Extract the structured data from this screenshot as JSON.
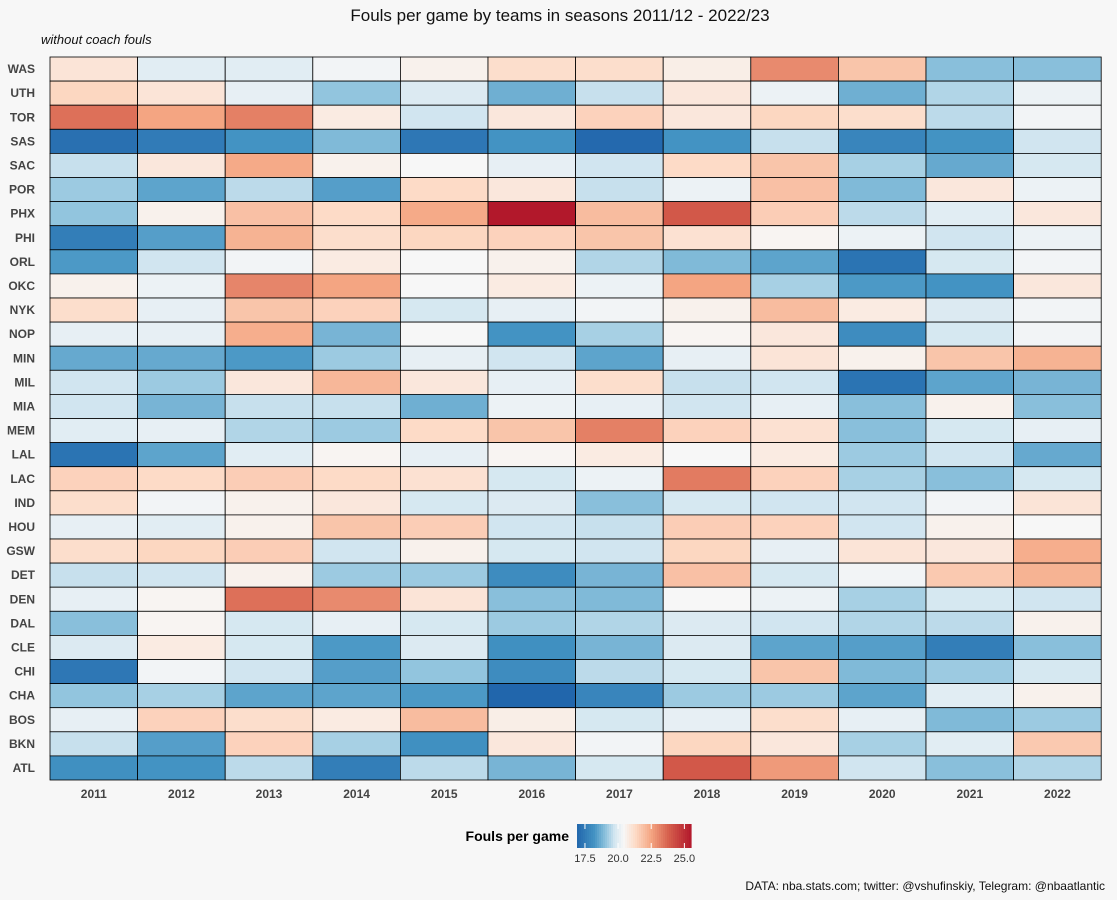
{
  "title": "Fouls per game by teams in seasons 2011/12 - 2022/23",
  "subtitle": "without coach fouls",
  "caption": "DATA: nba.stats.com; twitter: @vshufinskiy, Telegram: @nbaatlantic",
  "chart_data": {
    "type": "heatmap",
    "title": "Fouls per game by teams in seasons 2011/12 - 2022/23",
    "subtitle": "without coach fouls",
    "x_categories": [
      "2011",
      "2012",
      "2013",
      "2014",
      "2015",
      "2016",
      "2017",
      "2018",
      "2019",
      "2020",
      "2021",
      "2022"
    ],
    "y_categories": [
      "WAS",
      "UTH",
      "TOR",
      "SAS",
      "SAC",
      "POR",
      "PHX",
      "PHI",
      "ORL",
      "OKC",
      "NYK",
      "NOP",
      "MIN",
      "MIL",
      "MIA",
      "MEM",
      "LAL",
      "LAC",
      "IND",
      "HOU",
      "GSW",
      "DET",
      "DEN",
      "DAL",
      "CLE",
      "CHI",
      "CHA",
      "BOS",
      "BKN",
      "ATL"
    ],
    "values": [
      [
        21.0,
        20.0,
        20.0,
        20.3,
        20.6,
        21.2,
        21.2,
        20.7,
        23.0,
        21.8,
        19.0,
        19.0
      ],
      [
        21.4,
        21.0,
        20.1,
        19.1,
        19.9,
        18.7,
        19.6,
        20.9,
        20.2,
        18.7,
        19.4,
        20.2
      ],
      [
        23.5,
        22.5,
        23.2,
        20.8,
        19.7,
        20.9,
        21.5,
        20.9,
        21.4,
        21.2,
        19.5,
        20.3
      ],
      [
        17.2,
        17.5,
        18.2,
        18.9,
        17.4,
        18.2,
        17.0,
        18.2,
        19.6,
        17.8,
        18.2,
        19.7
      ],
      [
        19.6,
        20.9,
        22.4,
        20.6,
        20.4,
        20.1,
        19.7,
        21.3,
        21.8,
        19.3,
        18.6,
        19.8
      ],
      [
        19.2,
        18.5,
        19.5,
        18.4,
        21.3,
        20.9,
        19.6,
        20.2,
        21.9,
        18.9,
        20.9,
        20.2
      ],
      [
        19.1,
        20.6,
        21.9,
        21.3,
        22.4,
        25.5,
        22.0,
        24.0,
        21.6,
        19.5,
        20.0,
        20.9
      ],
      [
        17.6,
        18.4,
        22.2,
        21.2,
        21.4,
        21.5,
        21.8,
        21.1,
        20.5,
        20.2,
        19.7,
        20.2
      ],
      [
        18.3,
        19.7,
        20.3,
        20.8,
        20.4,
        20.6,
        19.4,
        18.9,
        18.5,
        17.3,
        19.8,
        20.3
      ],
      [
        20.6,
        20.2,
        23.1,
        22.5,
        20.4,
        20.8,
        20.2,
        22.5,
        19.3,
        18.3,
        18.2,
        20.9
      ],
      [
        21.2,
        20.1,
        21.8,
        21.5,
        19.8,
        20.1,
        20.3,
        20.6,
        22.0,
        20.8,
        19.9,
        20.3
      ],
      [
        20.1,
        20.1,
        22.3,
        18.8,
        20.4,
        18.2,
        19.3,
        20.5,
        20.9,
        18.0,
        19.8,
        20.3
      ],
      [
        18.6,
        18.6,
        18.3,
        19.2,
        20.1,
        19.7,
        18.5,
        20.1,
        21.0,
        20.6,
        21.8,
        22.2
      ],
      [
        19.7,
        19.2,
        20.9,
        22.1,
        20.9,
        20.1,
        21.2,
        19.6,
        19.7,
        17.3,
        18.5,
        18.8
      ],
      [
        19.7,
        18.8,
        19.6,
        19.6,
        18.7,
        20.2,
        20.1,
        19.7,
        20.1,
        19.0,
        20.6,
        19.0
      ],
      [
        20.0,
        20.1,
        19.4,
        19.2,
        21.3,
        21.8,
        23.2,
        21.5,
        21.1,
        19.0,
        19.8,
        20.1
      ],
      [
        17.3,
        18.5,
        20.0,
        20.5,
        20.1,
        20.5,
        20.8,
        20.4,
        20.8,
        19.2,
        19.7,
        18.6
      ],
      [
        21.5,
        21.3,
        21.6,
        21.3,
        21.1,
        19.8,
        20.2,
        23.3,
        21.5,
        19.3,
        19.0,
        19.8
      ],
      [
        21.2,
        20.3,
        20.6,
        20.9,
        19.8,
        19.9,
        19.0,
        19.8,
        19.7,
        19.7,
        20.3,
        21.0
      ],
      [
        20.1,
        20.0,
        20.6,
        21.8,
        21.6,
        19.7,
        19.6,
        21.6,
        21.5,
        19.7,
        20.6,
        20.4
      ],
      [
        21.2,
        21.4,
        21.6,
        19.7,
        20.6,
        19.8,
        19.7,
        21.4,
        20.1,
        21.0,
        20.9,
        22.3
      ],
      [
        19.6,
        19.7,
        20.6,
        19.2,
        19.2,
        18.0,
        18.8,
        21.9,
        19.8,
        20.3,
        21.7,
        22.2
      ],
      [
        20.1,
        20.5,
        23.5,
        23.0,
        21.0,
        19.0,
        18.9,
        20.4,
        20.2,
        19.3,
        19.8,
        19.7
      ],
      [
        19.0,
        20.5,
        19.8,
        20.1,
        19.8,
        19.2,
        19.4,
        19.9,
        19.7,
        19.4,
        19.5,
        20.6
      ],
      [
        19.9,
        20.8,
        19.8,
        18.3,
        19.9,
        18.1,
        18.8,
        19.9,
        18.5,
        18.4,
        17.6,
        19.0
      ],
      [
        17.4,
        20.3,
        19.7,
        18.4,
        19.1,
        18.0,
        19.5,
        19.8,
        21.8,
        18.9,
        19.2,
        19.8
      ],
      [
        19.1,
        19.3,
        18.5,
        18.5,
        18.3,
        16.9,
        17.8,
        19.2,
        19.2,
        18.5,
        20.0,
        20.6
      ],
      [
        20.1,
        21.5,
        21.2,
        20.8,
        22.0,
        20.7,
        19.8,
        20.1,
        21.2,
        20.1,
        18.9,
        19.2
      ],
      [
        19.6,
        18.4,
        21.5,
        19.3,
        18.1,
        20.9,
        20.3,
        21.4,
        20.9,
        19.3,
        20.0,
        21.7
      ],
      [
        18.1,
        18.2,
        19.5,
        17.6,
        19.5,
        18.8,
        19.8,
        24.0,
        22.7,
        19.7,
        19.0,
        19.4
      ]
    ],
    "legend": {
      "title": "Fouls per game",
      "ticks": [
        "17.5",
        "20.0",
        "22.5",
        "25.0"
      ],
      "domain": [
        16.9,
        25.5
      ],
      "position": "bottom"
    },
    "colors": {
      "low": "#2166ac",
      "mid": "#f7f7f7",
      "high": "#b2182b"
    },
    "grid": false
  }
}
